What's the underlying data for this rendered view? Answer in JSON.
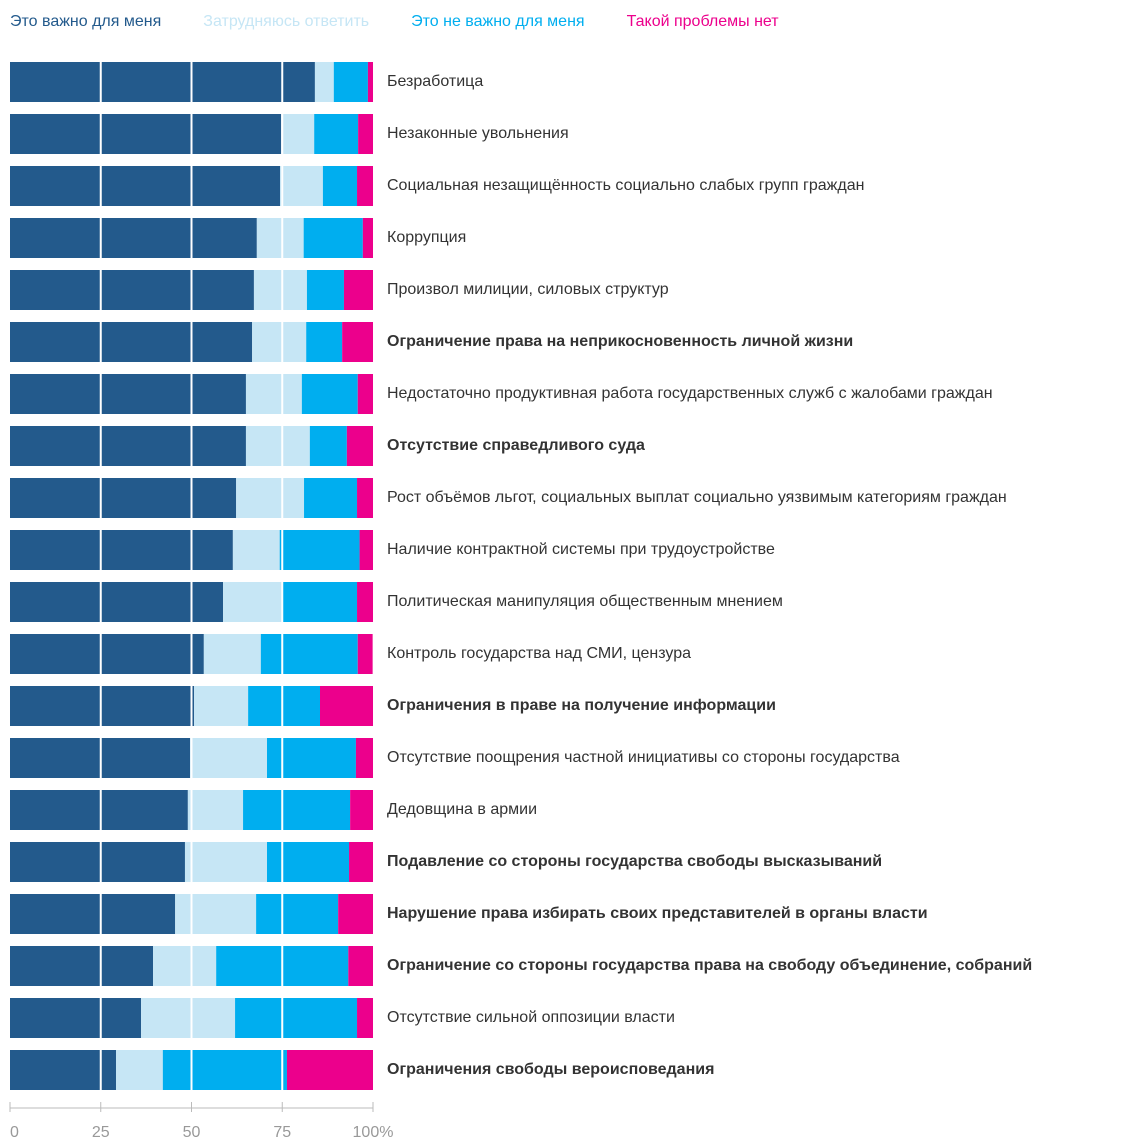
{
  "chart_data": {
    "type": "stacked_bar_horizontal",
    "categories": [
      "Безработица",
      "Незаконные увольнения",
      "Социальная незащищённость социально слабых групп граждан",
      "Коррупция",
      "Произвол милиции, силовых структур",
      "Ограничение права на неприкосновенность личной жизни",
      "Недостаточно продуктивная работа государственных служб с жалобами граждан",
      "Отсутствие справедливого суда",
      "Рост объёмов льгот, социальных выплат социально уязвимым категориям граждан",
      "Наличие контрактной системы при трудоустройстве",
      "Политическая манипуляция общественным мнением",
      "Контроль государства над СМИ, цензура",
      "Ограничения в праве на получение информации",
      "Отсутствие поощрения частной инициативы со стороны государства",
      "Дедовщина в армии",
      "Подавление со стороны государства свободы высказываний",
      "Нарушение права избирать своих представителей в органы власти",
      "Ограничение со стороны государства права на свободу объединение, собраний",
      "Отсутствие сильной оппозиции власти",
      "Ограничения свободы вероисповедания"
    ],
    "label_bold": [
      false,
      false,
      false,
      false,
      false,
      true,
      false,
      true,
      false,
      false,
      false,
      false,
      true,
      false,
      false,
      true,
      true,
      true,
      false,
      true
    ],
    "series": [
      {
        "name": "Это важно для меня",
        "color": "#235a8c",
        "values": [
          84.0,
          74.7,
          74.4,
          68.0,
          67.2,
          66.7,
          65.0,
          65.0,
          62.3,
          61.4,
          58.7,
          53.4,
          50.7,
          49.6,
          49.0,
          48.2,
          45.5,
          39.4,
          36.1,
          29.2
        ]
      },
      {
        "name": "Затрудняюсь ответить",
        "color": "#c6e6f5",
        "values": [
          5.2,
          9.1,
          11.8,
          12.9,
          14.6,
          14.9,
          15.4,
          17.6,
          18.7,
          12.9,
          16.5,
          15.7,
          14.9,
          21.2,
          15.2,
          22.6,
          22.3,
          17.4,
          25.9,
          12.9
        ]
      },
      {
        "name": "Это не важно для меня",
        "color": "#00aeef",
        "values": [
          9.4,
          12.1,
          9.4,
          16.3,
          10.2,
          9.9,
          15.4,
          10.2,
          14.6,
          22.0,
          20.4,
          26.7,
          19.8,
          24.5,
          29.5,
          22.6,
          22.6,
          36.4,
          33.6,
          34.2
        ]
      },
      {
        "name": "Такой проблемы нет",
        "color": "#ec008c",
        "values": [
          1.4,
          4.1,
          4.4,
          2.8,
          8.0,
          8.5,
          4.2,
          7.2,
          4.4,
          3.7,
          4.4,
          4.1,
          14.6,
          4.7,
          6.3,
          6.6,
          9.6,
          6.8,
          4.4,
          23.7
        ]
      }
    ],
    "xlim": [
      0,
      100
    ],
    "xticks": [
      0,
      25,
      50,
      75,
      {
        "value": 100,
        "label": "100%"
      }
    ],
    "grid": true,
    "grid_color": "#ffffff",
    "legend": "top"
  }
}
